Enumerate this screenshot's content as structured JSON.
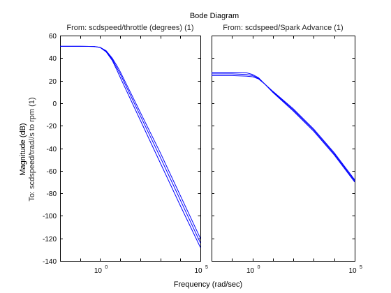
{
  "chart_data": {
    "type": "line",
    "title": "Bode Diagram",
    "xlabel": "Frequency  (rad/sec)",
    "ylabel_top": "Magnitude (dB)",
    "ylabel_bottom": "To: scdspeed/trad//s to rpm (1)",
    "ylim": [
      -140,
      60
    ],
    "yticks": [
      60,
      40,
      20,
      0,
      -20,
      -40,
      -60,
      -80,
      -100,
      -120,
      -140
    ],
    "x_scale": "log",
    "xlim": [
      0.01,
      100000
    ],
    "xtick_labels": [
      {
        "base": "10",
        "exp": "0"
      },
      {
        "base": "10",
        "exp": "5"
      }
    ],
    "grid": false,
    "line_color": "#0000ff",
    "panels": [
      {
        "subtitle": "From: scdspeed/throttle (degrees) (1)",
        "series": [
          {
            "x": [
              0.01,
              0.1,
              0.5,
              1,
              2,
              4,
              7,
              10,
              100,
              1000,
              10000,
              100000
            ],
            "y": [
              50.5,
              50.5,
              50.3,
              49.5,
              46,
              39,
              31,
              26,
              -11,
              -48,
              -86,
              -124
            ]
          },
          {
            "x": [
              0.01,
              0.1,
              0.5,
              1,
              2,
              4,
              7,
              10,
              100,
              1000,
              10000,
              100000
            ],
            "y": [
              50.5,
              50.5,
              50.3,
              49.4,
              45.5,
              38,
              29,
              23,
              -15,
              -53,
              -91,
              -128
            ]
          },
          {
            "x": [
              0.01,
              0.1,
              0.5,
              1,
              2,
              4,
              7,
              10,
              100,
              1000,
              10000,
              100000
            ],
            "y": [
              50.5,
              50.5,
              50.3,
              49.6,
              46.5,
              40,
              33,
              28,
              -8,
              -44,
              -82,
              -120
            ]
          }
        ]
      },
      {
        "subtitle": "From: scdspeed/Spark Advance (1)",
        "series": [
          {
            "x": [
              0.01,
              0.1,
              0.5,
              1,
              2,
              4,
              10,
              100,
              1000,
              10000,
              100000
            ],
            "y": [
              26,
              26,
              25.5,
              24.5,
              22,
              17,
              10,
              -6,
              -24,
              -45,
              -69
            ]
          },
          {
            "x": [
              0.01,
              0.1,
              0.5,
              1,
              2,
              4,
              10,
              100,
              1000,
              10000,
              100000
            ],
            "y": [
              27.5,
              27.5,
              27,
              25.5,
              22.5,
              17,
              9.5,
              -7,
              -25,
              -46,
              -70
            ]
          },
          {
            "x": [
              0.01,
              0.1,
              0.5,
              1,
              2,
              4,
              10,
              100,
              1000,
              10000,
              100000
            ],
            "y": [
              24.5,
              24.5,
              24,
              23.5,
              21.5,
              17,
              10.5,
              -5,
              -23,
              -44,
              -68
            ]
          }
        ]
      }
    ]
  }
}
